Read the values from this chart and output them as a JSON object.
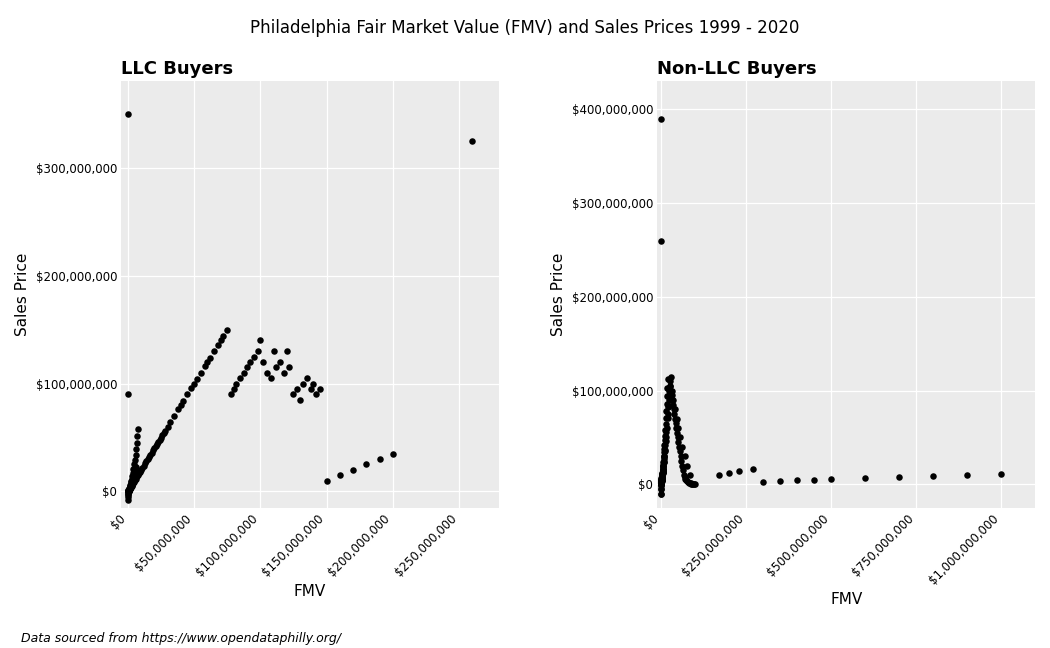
{
  "title": "Philadelphia Fair Market Value (FMV) and Sales Prices 1999 - 2020",
  "subtitle": "Data sourced from https://www.opendataphilly.org/",
  "left_title": "LLC Buyers",
  "right_title": "Non-LLC Buyers",
  "xlabel": "FMV",
  "ylabel": "Sales Price",
  "background_color": "#EBEBEB",
  "dot_color": "#000000",
  "dot_size": 22,
  "llc_xlim": [
    -5000000,
    280000000
  ],
  "llc_ylim": [
    -15000000,
    380000000
  ],
  "nonllc_xlim": [
    -10000000,
    1100000000
  ],
  "nonllc_ylim": [
    -25000000,
    430000000
  ],
  "llc_xticks": [
    0,
    50000000,
    100000000,
    150000000,
    200000000,
    250000000
  ],
  "llc_yticks": [
    0,
    100000000,
    200000000,
    300000000
  ],
  "nonllc_xticks": [
    0,
    250000000,
    500000000,
    750000000,
    1000000000
  ],
  "nonllc_yticks": [
    0,
    100000000,
    200000000,
    300000000,
    400000000
  ],
  "llc_x": [
    500000,
    1000000,
    800000,
    1200000,
    600000,
    900000,
    1500000,
    700000,
    2000000,
    1800000,
    2500000,
    3000000,
    1600000,
    2200000,
    2800000,
    3500000,
    4000000,
    3800000,
    4500000,
    5000000,
    5500000,
    6000000,
    6500000,
    7000000,
    7500000,
    8000000,
    8500000,
    9000000,
    9500000,
    10000000,
    11000000,
    12000000,
    13000000,
    14000000,
    15000000,
    16000000,
    17000000,
    18000000,
    19000000,
    20000000,
    21000000,
    22000000,
    23000000,
    24000000,
    25000000,
    26000000,
    27000000,
    28000000,
    30000000,
    32000000,
    35000000,
    38000000,
    40000000,
    42000000,
    45000000,
    48000000,
    50000000,
    52000000,
    55000000,
    58000000,
    60000000,
    62000000,
    65000000,
    68000000,
    70000000,
    72000000,
    75000000,
    78000000,
    80000000,
    82000000,
    85000000,
    88000000,
    90000000,
    92000000,
    95000000,
    98000000,
    100000000,
    102000000,
    105000000,
    108000000,
    110000000,
    112000000,
    115000000,
    118000000,
    120000000,
    122000000,
    125000000,
    128000000,
    130000000,
    132000000,
    135000000,
    138000000,
    140000000,
    142000000,
    145000000,
    300000,
    400000,
    600000,
    700000,
    800000,
    1000000,
    1100000,
    1300000,
    1400000,
    1600000,
    1700000,
    1900000,
    2100000,
    2300000,
    2600000,
    2900000,
    3200000,
    3600000,
    4200000,
    4800000,
    5200000,
    5800000,
    6200000,
    6800000,
    7200000,
    7800000,
    200000,
    300000,
    500000,
    700000,
    1000000,
    1200000,
    1500000,
    1800000,
    2100000,
    2400000,
    2700000,
    3100000,
    3400000,
    3800000,
    4300000,
    4700000,
    5100000,
    5600000,
    6100000,
    150000000,
    160000000,
    170000000,
    180000000,
    190000000,
    200000000,
    0,
    100000,
    200000,
    300000,
    500000,
    700000,
    900000,
    1100000,
    1300000,
    1600000,
    1900000,
    2200000,
    2600000,
    3000000,
    0,
    0,
    0,
    260000000,
    100000,
    200000
  ],
  "llc_y": [
    1000000,
    2000000,
    1500000,
    2500000,
    800000,
    1200000,
    3000000,
    900000,
    4000000,
    3500000,
    5000000,
    6000000,
    2800000,
    4200000,
    5500000,
    7000000,
    8000000,
    7500000,
    9000000,
    10000000,
    11000000,
    12000000,
    13000000,
    14000000,
    15000000,
    16000000,
    17000000,
    18000000,
    19000000,
    20000000,
    22000000,
    24000000,
    26000000,
    28000000,
    30000000,
    32000000,
    34000000,
    36000000,
    38000000,
    40000000,
    42000000,
    44000000,
    46000000,
    48000000,
    50000000,
    52000000,
    54000000,
    56000000,
    60000000,
    64000000,
    70000000,
    76000000,
    80000000,
    84000000,
    90000000,
    96000000,
    100000000,
    104000000,
    110000000,
    116000000,
    120000000,
    124000000,
    130000000,
    136000000,
    140000000,
    144000000,
    150000000,
    90000000,
    95000000,
    100000000,
    105000000,
    110000000,
    115000000,
    120000000,
    125000000,
    130000000,
    140000000,
    120000000,
    110000000,
    105000000,
    130000000,
    115000000,
    120000000,
    110000000,
    130000000,
    115000000,
    90000000,
    95000000,
    85000000,
    100000000,
    105000000,
    95000000,
    100000000,
    90000000,
    95000000,
    500000,
    800000,
    1200000,
    1500000,
    1800000,
    2200000,
    2600000,
    3100000,
    3600000,
    4200000,
    5000000,
    6000000,
    7000000,
    8500000,
    10000000,
    12000000,
    14500000,
    17500000,
    21000000,
    25000000,
    29000000,
    34000000,
    39000000,
    45000000,
    51000000,
    58000000,
    200000,
    400000,
    700000,
    1000000,
    1500000,
    2000000,
    2600000,
    3300000,
    4100000,
    5000000,
    6000000,
    7200000,
    8600000,
    10200000,
    12000000,
    14000000,
    16500000,
    19500000,
    23000000,
    10000000,
    15000000,
    20000000,
    25000000,
    30000000,
    35000000,
    -5000000,
    -3000000,
    -1000000,
    0,
    500000,
    1000000,
    1500000,
    2000000,
    2500000,
    3000000,
    3500000,
    4000000,
    5000000,
    6000000,
    -8000000,
    -2000000,
    1000000,
    325000000,
    350000000,
    90000000
  ],
  "nonllc_x": [
    500000,
    800000,
    1200000,
    1600000,
    2000000,
    2500000,
    3000000,
    3500000,
    4000000,
    4500000,
    5000000,
    5500000,
    6000000,
    6500000,
    7000000,
    7500000,
    8000000,
    8500000,
    9000000,
    9500000,
    10000000,
    11000000,
    12000000,
    13000000,
    14000000,
    15000000,
    16000000,
    17000000,
    18000000,
    19000000,
    20000000,
    21000000,
    22000000,
    23000000,
    24000000,
    25000000,
    26000000,
    27000000,
    28000000,
    30000000,
    32000000,
    34000000,
    36000000,
    38000000,
    40000000,
    42000000,
    44000000,
    46000000,
    48000000,
    50000000,
    52000000,
    54000000,
    56000000,
    58000000,
    60000000,
    62000000,
    65000000,
    68000000,
    70000000,
    72000000,
    75000000,
    78000000,
    80000000,
    82000000,
    85000000,
    88000000,
    90000000,
    92000000,
    95000000,
    98000000,
    100000000,
    300000,
    500000,
    700000,
    900000,
    1100000,
    1400000,
    1700000,
    2100000,
    2500000,
    2900000,
    3400000,
    3900000,
    4500000,
    5200000,
    6000000,
    7000000,
    8200000,
    9500000,
    11000000,
    13000000,
    15000000,
    17500000,
    20000000,
    23000000,
    26000000,
    29000000,
    33000000,
    37000000,
    42000000,
    47000000,
    52000000,
    57000000,
    63000000,
    70000000,
    77000000,
    85000000,
    200000,
    400000,
    600000,
    800000,
    1000000,
    1300000,
    1600000,
    2000000,
    2400000,
    2800000,
    3300000,
    3900000,
    4600000,
    5400000,
    6300000,
    7400000,
    8700000,
    10200000,
    12000000,
    14000000,
    16500000,
    0,
    100000,
    200000,
    300000,
    400000,
    600000,
    800000,
    1000000,
    1200000,
    1500000,
    1800000,
    2100000,
    2500000,
    3000000,
    3500000,
    4200000,
    5000000,
    6000000,
    7200000,
    0,
    0,
    0,
    0,
    170000000,
    200000000,
    230000000,
    270000000,
    300000000,
    350000000,
    400000000,
    450000000,
    500000000,
    600000000,
    700000000,
    800000000,
    900000000,
    1000000000,
    100000,
    200000
  ],
  "nonllc_y": [
    1000000,
    1500000,
    2200000,
    3000000,
    4000000,
    5000000,
    6200000,
    7500000,
    9000000,
    10500000,
    12000000,
    14000000,
    16000000,
    18500000,
    21000000,
    24000000,
    27000000,
    30500000,
    34000000,
    38000000,
    42000000,
    47000000,
    52000000,
    58000000,
    64000000,
    71000000,
    78000000,
    86000000,
    94000000,
    103000000,
    112000000,
    75000000,
    82000000,
    90000000,
    95000000,
    100000000,
    105000000,
    110000000,
    105000000,
    100000000,
    95000000,
    90000000,
    85000000,
    80000000,
    75000000,
    70000000,
    65000000,
    60000000,
    55000000,
    50000000,
    45000000,
    40000000,
    35000000,
    30000000,
    25000000,
    20000000,
    15000000,
    10000000,
    8000000,
    6000000,
    4000000,
    3000000,
    2000000,
    1500000,
    1000000,
    800000,
    600000,
    500000,
    400000,
    300000,
    200000,
    200000,
    400000,
    700000,
    1000000,
    1500000,
    2100000,
    2800000,
    3700000,
    4700000,
    5800000,
    7200000,
    8800000,
    10700000,
    13000000,
    16000000,
    19500000,
    24000000,
    29000000,
    35000000,
    42000000,
    50000000,
    60000000,
    71000000,
    84000000,
    98000000,
    114000000,
    100000000,
    90000000,
    80000000,
    70000000,
    60000000,
    50000000,
    40000000,
    30000000,
    20000000,
    10000000,
    100000,
    300000,
    600000,
    900000,
    1300000,
    1800000,
    2400000,
    3200000,
    4100000,
    5200000,
    6600000,
    8200000,
    10200000,
    12700000,
    15700000,
    19500000,
    24000000,
    30000000,
    37000000,
    46000000,
    56000000,
    -10000000,
    -5000000,
    -2000000,
    0,
    1000000,
    2000000,
    3000000,
    4000000,
    5000000,
    6000000,
    7000000,
    8000000,
    9000000,
    10000000,
    11000000,
    12000000,
    13000000,
    14000000,
    15000000,
    -10000000,
    -5000000,
    0,
    2000000,
    10000000,
    12000000,
    14000000,
    16000000,
    2000000,
    3000000,
    4000000,
    5000000,
    6000000,
    7000000,
    8000000,
    9000000,
    10000000,
    11000000,
    390000000,
    260000000
  ]
}
